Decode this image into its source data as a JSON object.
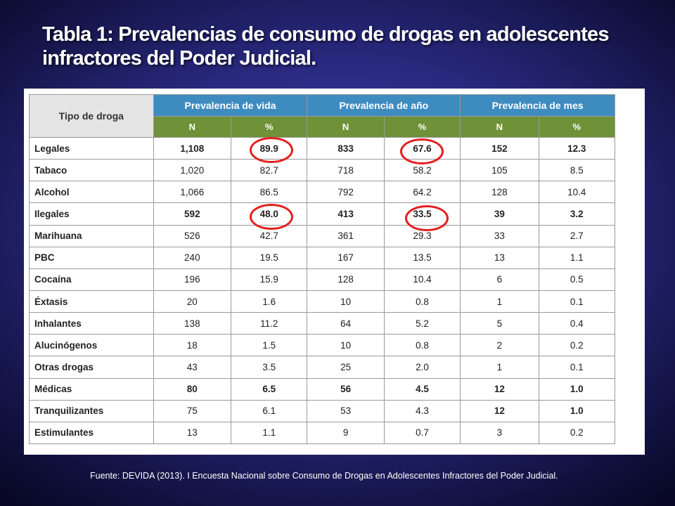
{
  "title": "Tabla 1: Prevalencias de consumo de drogas en adolescentes infractores del Poder Judicial.",
  "table": {
    "corner_header": "Tipo de droga",
    "group_headers": [
      "Prevalencia de vida",
      "Prevalencia de año",
      "Prevalencia de mes"
    ],
    "sub_headers": [
      "N",
      "%",
      "N",
      "%",
      "N",
      "%"
    ],
    "rows": [
      {
        "label": "Legales",
        "values": [
          "1,108",
          "89.9",
          "833",
          "67.6",
          "152",
          "12.3"
        ]
      },
      {
        "label": "Tabaco",
        "values": [
          "1,020",
          "82.7",
          "718",
          "58.2",
          "105",
          "8.5"
        ]
      },
      {
        "label": "Alcohol",
        "values": [
          "1,066",
          "86.5",
          "792",
          "64.2",
          "128",
          "10.4"
        ]
      },
      {
        "label": "Ilegales",
        "values": [
          "592",
          "48.0",
          "413",
          "33.5",
          "39",
          "3.2"
        ]
      },
      {
        "label": "Marihuana",
        "values": [
          "526",
          "42.7",
          "361",
          "29.3",
          "33",
          "2.7"
        ]
      },
      {
        "label": "PBC",
        "values": [
          "240",
          "19.5",
          "167",
          "13.5",
          "13",
          "1.1"
        ]
      },
      {
        "label": "Cocaína",
        "values": [
          "196",
          "15.9",
          "128",
          "10.4",
          "6",
          "0.5"
        ]
      },
      {
        "label": "Éxtasis",
        "values": [
          "20",
          "1.6",
          "10",
          "0.8",
          "1",
          "0.1"
        ]
      },
      {
        "label": "Inhalantes",
        "values": [
          "138",
          "11.2",
          "64",
          "5.2",
          "5",
          "0.4"
        ]
      },
      {
        "label": "Alucinógenos",
        "values": [
          "18",
          "1.5",
          "10",
          "0.8",
          "2",
          "0.2"
        ]
      },
      {
        "label": "Otras drogas",
        "values": [
          "43",
          "3.5",
          "25",
          "2.0",
          "1",
          "0.1"
        ]
      },
      {
        "label": "Médicas",
        "values": [
          "80",
          "6.5",
          "56",
          "4.5",
          "12",
          "1.0"
        ]
      },
      {
        "label": "Tranquilizantes",
        "values": [
          "75",
          "6.1",
          "53",
          "4.3",
          "12",
          "1.0"
        ]
      },
      {
        "label": "Estimulantes",
        "values": [
          "13",
          "1.1",
          "9",
          "0.7",
          "3",
          "0.2"
        ]
      }
    ],
    "header_colors": {
      "group": "#3e8bc0",
      "sub": "#6f9137",
      "highlight_circle": "#e41e1e"
    }
  },
  "source": "Fuente: DEVIDA (2013). I Encuesta Nacional  sobre Consumo de Drogas  en Adolescentes Infractores del Poder Judicial."
}
